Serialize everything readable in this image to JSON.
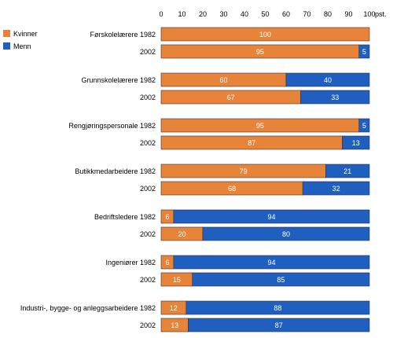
{
  "chart_data": {
    "type": "bar",
    "orientation": "horizontal",
    "stacked": true,
    "unit": "pst.",
    "xlim": [
      0,
      100
    ],
    "x_ticks": [
      0,
      10,
      20,
      30,
      40,
      50,
      60,
      70,
      80,
      90,
      100
    ],
    "legend": {
      "placement": "top-left",
      "entries": [
        "Kvinner",
        "Menn"
      ]
    },
    "series": [
      {
        "name": "Kvinner",
        "color": "#e8843a"
      },
      {
        "name": "Menn",
        "color": "#1f5fbf"
      }
    ],
    "groups": [
      {
        "rows": [
          {
            "label": "Førskolelærere 1982",
            "values": [
              100,
              0
            ]
          },
          {
            "label": "2002",
            "values": [
              95,
              5
            ]
          }
        ]
      },
      {
        "rows": [
          {
            "label": "Grunnskolelærere 1982",
            "values": [
              60,
              40
            ]
          },
          {
            "label": "2002",
            "values": [
              67,
              33
            ]
          }
        ]
      },
      {
        "rows": [
          {
            "label": "Rengjøringspersonale 1982",
            "values": [
              95,
              5
            ]
          },
          {
            "label": "2002",
            "values": [
              87,
              13
            ]
          }
        ]
      },
      {
        "rows": [
          {
            "label": "Butikkmedarbeidere 1982",
            "values": [
              79,
              21
            ]
          },
          {
            "label": "2002",
            "values": [
              68,
              32
            ]
          }
        ]
      },
      {
        "rows": [
          {
            "label": "Bedriftsledere 1982",
            "values": [
              6,
              94
            ]
          },
          {
            "label": "2002",
            "values": [
              20,
              80
            ]
          }
        ]
      },
      {
        "rows": [
          {
            "label": "Ingeniører 1982",
            "values": [
              6,
              94
            ]
          },
          {
            "label": "2002",
            "values": [
              15,
              85
            ]
          }
        ]
      },
      {
        "rows": [
          {
            "label": "Industri-, bygge- og anleggsarbeidere 1982",
            "values": [
              12,
              88
            ]
          },
          {
            "label": "2002",
            "values": [
              13,
              87
            ]
          }
        ]
      }
    ]
  }
}
